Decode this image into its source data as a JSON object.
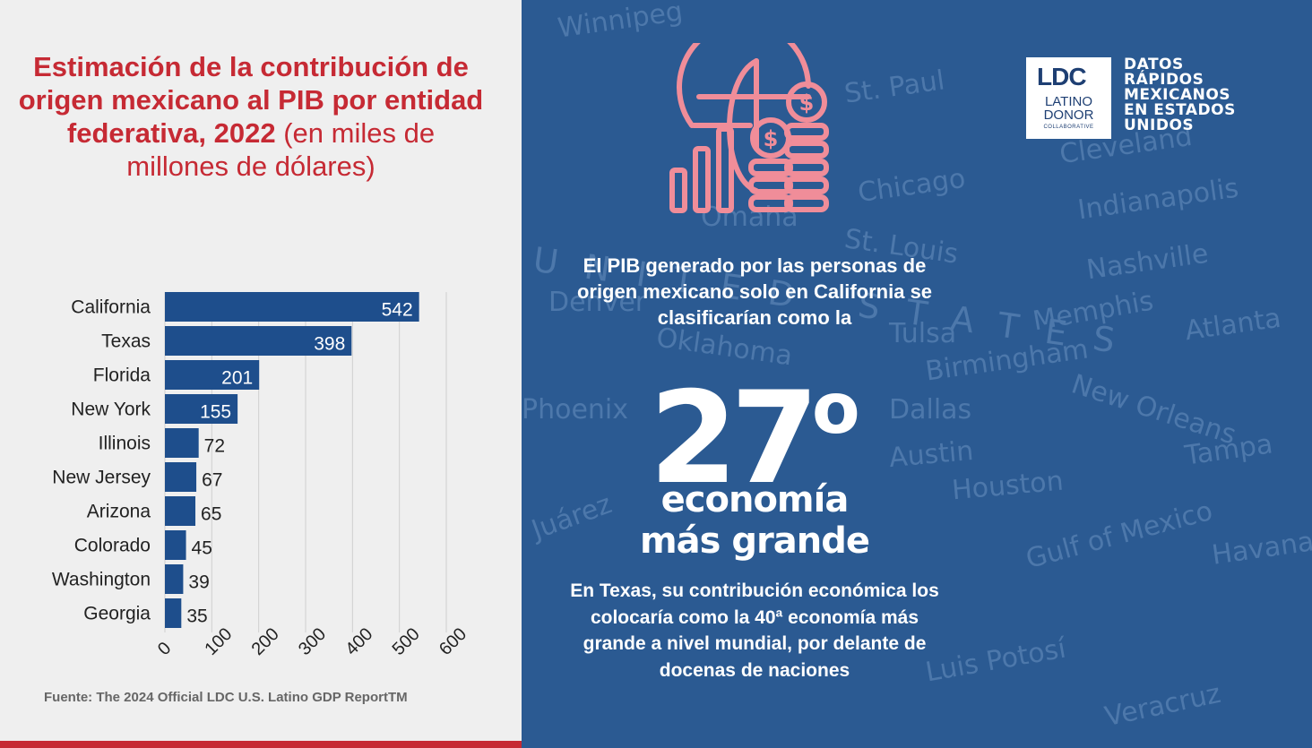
{
  "chart_data": {
    "type": "bar",
    "orientation": "horizontal",
    "title": "Estimación de la contribución de origen mexicano al PIB por entidad federativa, 2022",
    "subtitle": "(en miles de millones de dólares)",
    "categories": [
      "California",
      "Texas",
      "Florida",
      "New York",
      "Illinois",
      "New Jersey",
      "Arizona",
      "Colorado",
      "Washington",
      "Georgia"
    ],
    "values": [
      542,
      398,
      201,
      155,
      72,
      67,
      65,
      45,
      39,
      35
    ],
    "xlim": [
      0,
      600
    ],
    "xticks": [
      "0",
      "100",
      "200",
      "300",
      "400",
      "500",
      "600"
    ],
    "grid": true,
    "bar_color": "#1e4e8c"
  },
  "source": "Fuente: The 2024 Official LDC U.S. Latino GDP ReportTM",
  "brand": {
    "logo_mark": "LDC",
    "logo_line1": "LATINO",
    "logo_line2": "DONOR",
    "logo_line3": "COLLABORATIVE",
    "series_title": [
      "DATOS",
      "RÁPIDOS",
      "MEXICANOS",
      "EN ESTADOS",
      "UNIDOS"
    ]
  },
  "fact": {
    "intro": "El PIB generado por las personas de origen mexicano solo en California se clasificarían como la",
    "rank": "27",
    "rank_suffix": "o",
    "caption_line1": "economía",
    "caption_line2": "más grande",
    "texas": "En Texas, su contribución económica los colocaría como la 40ª economía más grande a nivel mundial, por delante de docenas de naciones"
  },
  "map_labels": [
    "Winnipeg",
    "St. Paul",
    "Chicago",
    "Cleveland",
    "Indianapolis",
    "St. Louis",
    "Nashville",
    "Memphis",
    "Atlanta",
    "Tulsa",
    "Oklahoma",
    "Birmingham",
    "Dallas",
    "Austin",
    "Houston",
    "New Orleans",
    "Tampa",
    "Gulf of Mexico",
    "Havana",
    "Juárez",
    "Luis Potosí",
    "Veracruz",
    "Omaha",
    "Denver",
    "Phoenix",
    "UNITED STATES"
  ],
  "colors": {
    "title_red": "#c62a34",
    "panel_blue": "#2b5a92",
    "icon_pink": "#f08d99"
  },
  "icons": [
    "globe-dollar-coins-icon",
    "ldc-logo"
  ]
}
